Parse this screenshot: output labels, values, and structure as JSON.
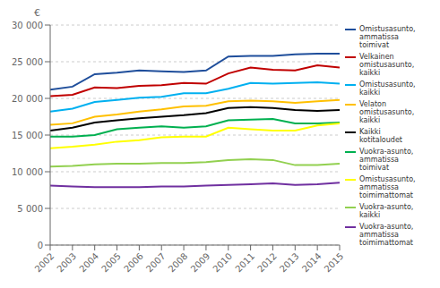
{
  "chart_data": {
    "type": "line",
    "ylabel": "€",
    "x": [
      2002,
      2003,
      2004,
      2005,
      2006,
      2007,
      2008,
      2009,
      2010,
      2011,
      2012,
      2013,
      2014,
      2015
    ],
    "series": [
      {
        "name": "Omistusasunto,\nammatissa\ntoimivat",
        "color": "#1F4E9B",
        "values": [
          21200,
          21600,
          23300,
          23500,
          23800,
          23700,
          23600,
          23800,
          25700,
          25800,
          25800,
          26000,
          26100,
          26100
        ]
      },
      {
        "name": "Velkainen\nomistusasunto,\nkaikki",
        "color": "#C00000",
        "values": [
          20300,
          20500,
          21500,
          21400,
          21700,
          21800,
          22100,
          22000,
          23400,
          24200,
          23900,
          23800,
          24500,
          24200
        ]
      },
      {
        "name": "Omistusasunto,\nkaikki",
        "color": "#00B0F0",
        "values": [
          18200,
          18600,
          19500,
          19800,
          20100,
          20200,
          20700,
          20700,
          21300,
          22100,
          22000,
          22100,
          22200,
          22000
        ]
      },
      {
        "name": "Velaton\nomistusasunto,\nkaikki",
        "color": "#FFC000",
        "values": [
          16400,
          16600,
          17500,
          17800,
          18200,
          18500,
          18900,
          19000,
          19600,
          19700,
          19600,
          19400,
          19600,
          19800
        ]
      },
      {
        "name": "Kaikki\nkotitaloudet",
        "color": "#000000",
        "values": [
          15600,
          16000,
          16700,
          17000,
          17300,
          17500,
          17700,
          18000,
          18700,
          18800,
          18700,
          18400,
          18300,
          18400
        ]
      },
      {
        "name": "Vuokra-asunto,\nammatissa\ntoimivat",
        "color": "#00B050",
        "values": [
          14800,
          14800,
          15000,
          15800,
          16000,
          16200,
          16000,
          16200,
          17000,
          17100,
          17200,
          16600,
          16600,
          16700
        ]
      },
      {
        "name": "Omistusasunto,\nammatissa\ntoimimattomat",
        "color": "#FFFF00",
        "values": [
          13200,
          13400,
          13700,
          14100,
          14300,
          14700,
          14800,
          14800,
          16000,
          15800,
          15600,
          15600,
          16300,
          16600
        ]
      },
      {
        "name": "Vuokra-asunto,\nkaikki",
        "color": "#92D050",
        "values": [
          10700,
          10800,
          11000,
          11100,
          11100,
          11200,
          11200,
          11300,
          11600,
          11700,
          11600,
          10900,
          10900,
          11100
        ]
      },
      {
        "name": "Vuokra-asunto,\nammatissa\ntoimimattomat",
        "color": "#7030A0",
        "values": [
          8100,
          8000,
          7900,
          7900,
          7900,
          8000,
          8000,
          8100,
          8200,
          8300,
          8400,
          8200,
          8300,
          8500
        ]
      }
    ],
    "xlim": [
      2002,
      2015
    ],
    "xticks": [
      2002,
      2003,
      2004,
      2005,
      2006,
      2007,
      2008,
      2009,
      2010,
      2011,
      2012,
      2013,
      2014,
      2015
    ],
    "ylim": [
      0,
      30000
    ],
    "yticks": [
      0,
      {
        "value": 5000,
        "label": "5 000"
      },
      {
        "value": 10000,
        "label": "10 000"
      },
      {
        "value": 15000,
        "label": "15 000"
      },
      {
        "value": 20000,
        "label": "20 000"
      },
      {
        "value": 25000,
        "label": "25 000"
      },
      {
        "value": 30000,
        "label": "30 000"
      }
    ],
    "grid": true,
    "legend": "right"
  }
}
